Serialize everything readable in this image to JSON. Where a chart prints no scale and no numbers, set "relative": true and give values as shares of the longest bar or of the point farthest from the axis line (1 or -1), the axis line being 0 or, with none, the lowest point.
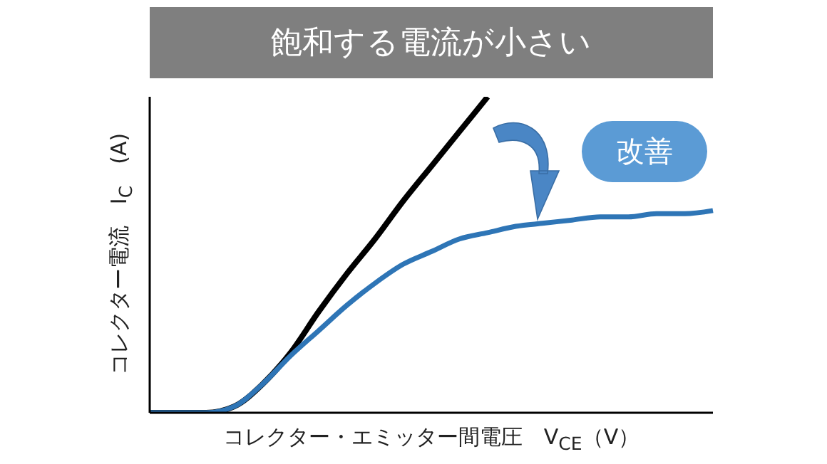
{
  "chart_data": {
    "type": "line",
    "title": "飽和する電流が小さい",
    "xlabel": "コレクター・エミッター間電圧　V$_{CE}$（V）",
    "ylabel": "コレクター電流　I$_{C}$　(A)",
    "relative": true,
    "marker": "none",
    "annotations": [
      "改善"
    ],
    "categories": [
      null,
      null,
      null,
      null,
      null,
      null,
      null,
      null,
      null,
      null,
      null,
      null,
      null,
      null,
      null,
      null,
      null,
      null,
      null,
      null,
      null
    ],
    "series": [
      {
        "color": "#000000",
        "values": [
          0,
          0,
          0,
          0.02,
          0.09,
          0.19,
          0.32,
          0.44,
          0.55,
          0.67,
          0.78,
          0.89,
          1,
          null,
          null,
          null,
          null,
          null,
          null,
          null,
          null
        ]
      },
      {
        "color": "#2e75b6",
        "values": [
          0,
          0,
          0,
          0.02,
          0.09,
          0.18,
          0.26,
          0.34,
          0.41,
          0.47,
          0.51,
          0.55,
          0.57,
          0.59,
          0.6,
          0.61,
          0.62,
          0.62,
          0.63,
          0.63,
          0.64
        ]
      }
    ]
  }
}
